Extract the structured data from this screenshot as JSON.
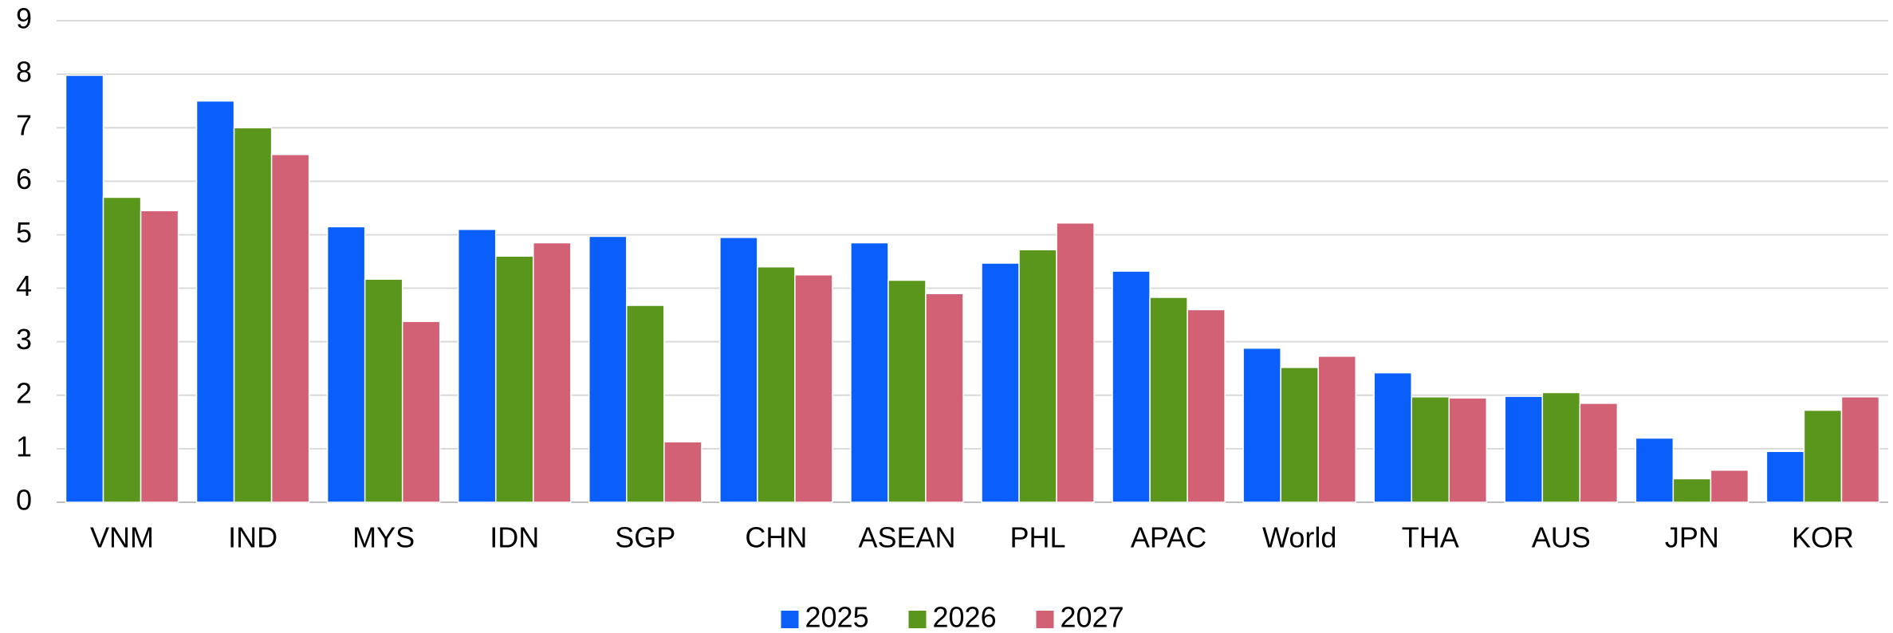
{
  "chart_data": {
    "type": "bar",
    "categories": [
      "VNM",
      "IND",
      "MYS",
      "IDN",
      "SGP",
      "CHN",
      "ASEAN",
      "PHL",
      "APAC",
      "World",
      "THA",
      "AUS",
      "JPN",
      "KOR"
    ],
    "series": [
      {
        "name": "2025",
        "color": "#0a5ffb",
        "values": [
          7.98,
          7.5,
          5.15,
          5.1,
          4.97,
          4.95,
          4.85,
          4.47,
          4.32,
          2.88,
          2.42,
          1.98,
          1.2,
          0.95
        ]
      },
      {
        "name": "2026",
        "color": "#5a961c",
        "values": [
          5.7,
          7.0,
          4.17,
          4.6,
          3.68,
          4.4,
          4.15,
          4.72,
          3.83,
          2.52,
          1.97,
          2.05,
          0.44,
          1.72
        ]
      },
      {
        "name": "2027",
        "color": "#d26176",
        "values": [
          5.45,
          6.5,
          3.38,
          4.85,
          1.13,
          4.25,
          3.9,
          5.22,
          3.6,
          2.73,
          1.95,
          1.85,
          0.6,
          1.97
        ]
      }
    ],
    "ylim": [
      0,
      9
    ],
    "yticks": [
      0,
      1,
      2,
      3,
      4,
      5,
      6,
      7,
      8,
      9
    ],
    "grid": true,
    "legend": "bottom"
  }
}
